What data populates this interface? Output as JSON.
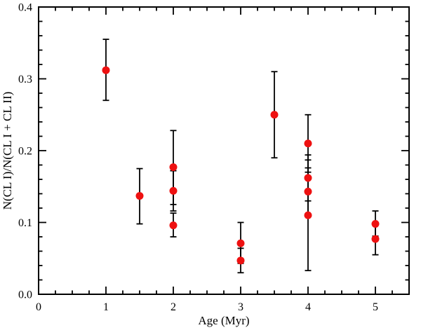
{
  "chart_data": {
    "type": "scatter",
    "title": "",
    "xlabel": "Age (Myr)",
    "ylabel": "N(CL I)/N(CL I + CL II)",
    "xlim": [
      0,
      5.5
    ],
    "ylim": [
      0.0,
      0.4
    ],
    "x_major_ticks": [
      0,
      1,
      2,
      3,
      4,
      5
    ],
    "x_tick_labels": [
      "0",
      "1",
      "2",
      "3",
      "4",
      "5"
    ],
    "x_minor_step": 0.25,
    "y_major_ticks": [
      0.0,
      0.1,
      0.2,
      0.3,
      0.4
    ],
    "y_tick_labels": [
      "0.0",
      "0.1",
      "0.2",
      "0.3",
      "0.4"
    ],
    "y_minor_step": 0.02,
    "grid": false,
    "legend": "none",
    "marker_color": "#ee1111",
    "axis_color": "#000000",
    "points": [
      {
        "x": 1.0,
        "y": 0.312,
        "lo": 0.27,
        "hi": 0.355
      },
      {
        "x": 1.5,
        "y": 0.137,
        "lo": 0.098,
        "hi": 0.175
      },
      {
        "x": 2.0,
        "y": 0.177,
        "lo": 0.125,
        "hi": 0.228
      },
      {
        "x": 2.0,
        "y": 0.144,
        "lo": 0.116,
        "hi": 0.172
      },
      {
        "x": 2.0,
        "y": 0.096,
        "lo": 0.08,
        "hi": 0.113
      },
      {
        "x": 3.0,
        "y": 0.071,
        "lo": 0.043,
        "hi": 0.1
      },
      {
        "x": 3.0,
        "y": 0.047,
        "lo": 0.03,
        "hi": 0.064
      },
      {
        "x": 3.5,
        "y": 0.25,
        "lo": 0.19,
        "hi": 0.31
      },
      {
        "x": 4.0,
        "y": 0.21,
        "lo": 0.17,
        "hi": 0.25
      },
      {
        "x": 4.0,
        "y": 0.162,
        "lo": 0.13,
        "hi": 0.194
      },
      {
        "x": 4.0,
        "y": 0.143,
        "lo": 0.11,
        "hi": 0.176
      },
      {
        "x": 4.0,
        "y": 0.11,
        "lo": 0.033,
        "hi": 0.187
      },
      {
        "x": 5.0,
        "y": 0.098,
        "lo": 0.081,
        "hi": 0.116
      },
      {
        "x": 5.0,
        "y": 0.077,
        "lo": 0.055,
        "hi": 0.099
      }
    ]
  }
}
